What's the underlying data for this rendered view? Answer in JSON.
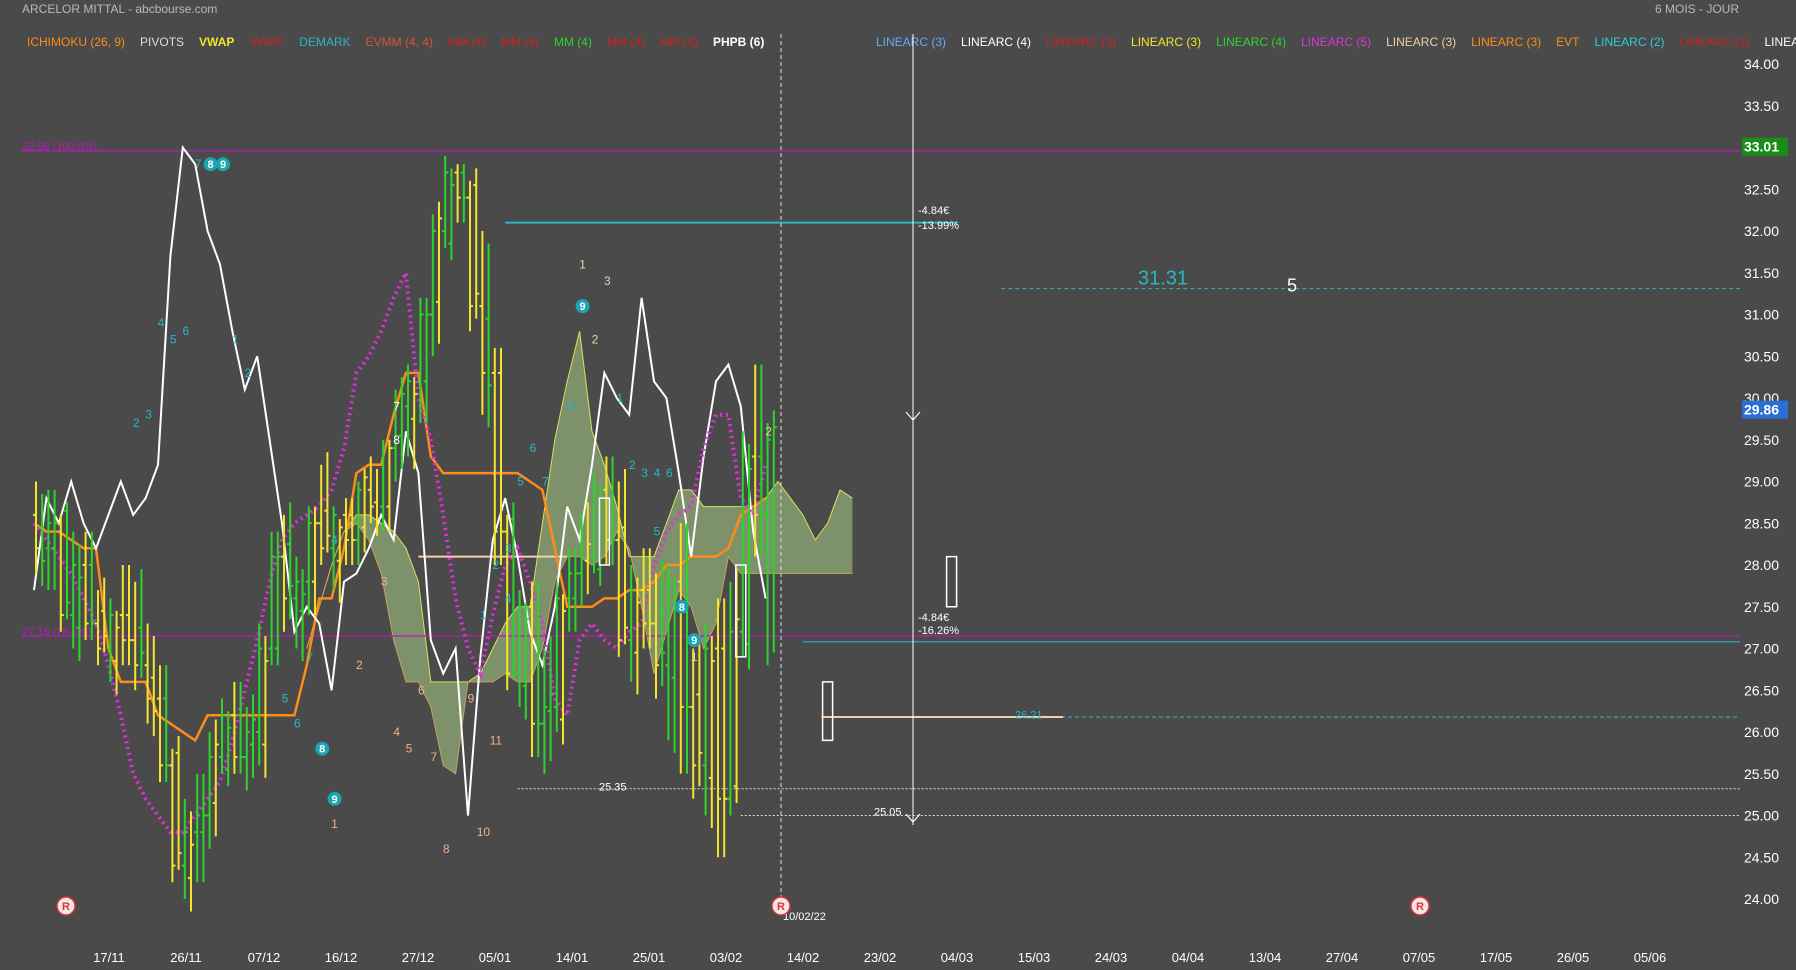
{
  "header": {
    "title": "ARCELOR MITTAL",
    "source": "abcbourse.com",
    "period": "6 MOIS - JOUR"
  },
  "legend_left": [
    {
      "label": "ICHIMOKU (26, 9)",
      "color": "#ff8c1a"
    },
    {
      "label": "PIVOTS",
      "color": "#dddddd"
    },
    {
      "label": "VWAP",
      "color": "#f2e52b"
    },
    {
      "label": "VWAP",
      "color": "#cc2222"
    },
    {
      "label": "DEMARK",
      "color": "#27b8c4"
    },
    {
      "label": "EVMM (4, 4)",
      "color": "#d9533b"
    },
    {
      "label": "MM (4)",
      "color": "#cc2222"
    },
    {
      "label": "MM (4)",
      "color": "#cc2222"
    },
    {
      "label": "MM (4)",
      "color": "#2bd62b"
    },
    {
      "label": "MM (4)",
      "color": "#cc2222"
    },
    {
      "label": "MM (4)",
      "color": "#cc2222"
    },
    {
      "label": "PHPB (6)",
      "color": "#ffffff"
    }
  ],
  "legend_right": [
    {
      "label": "LINEARC (3)",
      "color": "#66aaff"
    },
    {
      "label": "LINEARC (4)",
      "color": "#ffffff"
    },
    {
      "label": "LINEARC (3)",
      "color": "#cc2222"
    },
    {
      "label": "LINEARC (3)",
      "color": "#f2e52b"
    },
    {
      "label": "LINEARC (4)",
      "color": "#2bd62b"
    },
    {
      "label": "LINEARC (5)",
      "color": "#d63ad6"
    },
    {
      "label": "LINEARC (3)",
      "color": "#f0d0a8"
    },
    {
      "label": "LINEARC (3)",
      "color": "#ff8c1a"
    },
    {
      "label": "EVT",
      "color": "#ff8c1a"
    },
    {
      "label": "LINEARC (2)",
      "color": "#27d0d6"
    },
    {
      "label": "LINEARC (2)",
      "color": "#cc2222"
    },
    {
      "label": "LINEARC",
      "color": "#ffffff"
    }
  ],
  "chart_data": {
    "type": "candlestick",
    "y_ticks": [
      24.0,
      24.5,
      25.0,
      25.5,
      26.0,
      26.5,
      27.0,
      27.5,
      28.0,
      28.5,
      29.0,
      29.5,
      30.0,
      30.5,
      31.0,
      31.5,
      32.0,
      32.5,
      33.0,
      33.5,
      34.0
    ],
    "ylim": [
      23.6,
      34.3
    ],
    "x_ticks": [
      "17/11",
      "26/11",
      "07/12",
      "16/12",
      "27/12",
      "05/01",
      "14/01",
      "25/01",
      "03/02",
      "14/02",
      "23/02",
      "04/03",
      "15/03",
      "24/03",
      "04/04",
      "13/04",
      "27/04",
      "07/05",
      "17/05",
      "26/05",
      "05/06"
    ],
    "last_price": 29.86,
    "level_price": 33.01,
    "colors": {
      "up": "#2bd62b",
      "down": "#f2e52b",
      "ichi_line": "#ff8c1a",
      "cloud": "#8faa77",
      "cloud_edge": "#d7e25e",
      "pivot_line": "#ffffff",
      "dots": "#e02ee0",
      "teal": "#27b8c4",
      "fibo": "#b81ab8",
      "axis_text": "#ffffff",
      "green_badge": "#1a8c1a",
      "blue_badge": "#2b6fd6"
    },
    "fibo_levels": [
      {
        "label": "32.96  (100.0%)",
        "value": 32.96
      },
      {
        "label": "27.15  (78.6%)",
        "value": 27.15
      }
    ],
    "annotations": {
      "target": "31.31",
      "wave": "5",
      "low_a": "25.35",
      "low_b": "25.05",
      "level_c": "26.21",
      "date": "10/02/22",
      "meas_top_abs": "-4.84€",
      "meas_top_pct": "-13.99%",
      "meas_bot_abs": "-4.84€",
      "meas_bot_pct": "-16.26%",
      "r_marker": "R"
    },
    "demark_counts": [
      {
        "t": "7",
        "i": "13",
        "v": 32.8,
        "c": "#27b8c4"
      },
      {
        "t": "8",
        "i": "14",
        "v": 32.8,
        "c": "#ffffff",
        "badge": true
      },
      {
        "t": "9",
        "i": "15",
        "v": 32.8,
        "c": "#ffffff",
        "badge": true
      },
      {
        "t": "1",
        "i": "16",
        "v": 30.7,
        "c": "#27b8c4"
      },
      {
        "t": "2",
        "i": "17",
        "v": 30.3,
        "c": "#27b8c4"
      },
      {
        "t": "4",
        "i": "10",
        "v": 30.9,
        "c": "#27b8c4"
      },
      {
        "t": "5",
        "i": "11",
        "v": 30.7,
        "c": "#27b8c4"
      },
      {
        "t": "6",
        "i": "12",
        "v": 30.8,
        "c": "#27b8c4"
      },
      {
        "t": "2",
        "i": "8",
        "v": 29.7,
        "c": "#27b8c4"
      },
      {
        "t": "3",
        "i": "9",
        "v": 29.8,
        "c": "#27b8c4"
      },
      {
        "t": "4",
        "i": "24",
        "v": 28.3,
        "c": "#27b8c4"
      },
      {
        "t": "5",
        "i": "20",
        "v": 26.4,
        "c": "#27b8c4"
      },
      {
        "t": "6",
        "i": "21",
        "v": 26.1,
        "c": "#27b8c4"
      },
      {
        "t": "7",
        "i": "22",
        "v": 26.9,
        "c": "#27b8c4"
      },
      {
        "t": "8",
        "i": "23",
        "v": 25.8,
        "c": "#ffffff",
        "badge": true
      },
      {
        "t": "9",
        "i": "24",
        "v": 25.2,
        "c": "#ffffff",
        "badge": true
      },
      {
        "t": "1",
        "i": "24",
        "v": 24.9,
        "c": "#f0b090"
      },
      {
        "t": "2",
        "i": "26",
        "v": 26.8,
        "c": "#f0b090"
      },
      {
        "t": "3",
        "i": "28",
        "v": 27.8,
        "c": "#f0b090"
      },
      {
        "t": "4",
        "i": "29",
        "v": 26.0,
        "c": "#f0b090"
      },
      {
        "t": "5",
        "i": "30",
        "v": 25.8,
        "c": "#f0b090"
      },
      {
        "t": "6",
        "i": "31",
        "v": 26.5,
        "c": "#f0b090"
      },
      {
        "t": "7",
        "i": "32",
        "v": 25.7,
        "c": "#f0b090"
      },
      {
        "t": "8",
        "i": "33",
        "v": 24.6,
        "c": "#f0b090"
      },
      {
        "t": "9",
        "i": "35",
        "v": 26.4,
        "c": "#f0b090"
      },
      {
        "t": "10",
        "i": "36",
        "v": 24.8,
        "c": "#f0b090"
      },
      {
        "t": "11",
        "i": "37",
        "v": 25.9,
        "c": "#f0b090"
      },
      {
        "t": "7",
        "i": "29",
        "v": 29.9,
        "c": "#ffffff"
      },
      {
        "t": "8",
        "i": "29",
        "v": 29.5,
        "c": "#ffffff"
      },
      {
        "t": "1",
        "i": "36",
        "v": 27.4,
        "c": "#27b8c4"
      },
      {
        "t": "2",
        "i": "37",
        "v": 28.0,
        "c": "#27b8c4"
      },
      {
        "t": "3",
        "i": "38",
        "v": 28.2,
        "c": "#27b8c4"
      },
      {
        "t": "4",
        "i": "38",
        "v": 27.6,
        "c": "#27b8c4"
      },
      {
        "t": "5",
        "i": "39",
        "v": 29.0,
        "c": "#27b8c4"
      },
      {
        "t": "6",
        "i": "40",
        "v": 29.4,
        "c": "#27b8c4"
      },
      {
        "t": "7",
        "i": "41",
        "v": 29.0,
        "c": "#27b8c4"
      },
      {
        "t": "8",
        "i": "43",
        "v": 29.9,
        "c": "#27b8c4"
      },
      {
        "t": "9",
        "i": "44",
        "v": 31.1,
        "c": "#ffffff",
        "badge": true
      },
      {
        "t": "1",
        "i": "44",
        "v": 31.6,
        "c": "#f0d0a8"
      },
      {
        "t": "2",
        "i": "45",
        "v": 30.7,
        "c": "#f0d0a8"
      },
      {
        "t": "3",
        "i": "46",
        "v": 31.4,
        "c": "#f0d0a8"
      },
      {
        "t": "1",
        "i": "47",
        "v": 30.0,
        "c": "#27b8c4"
      },
      {
        "t": "2",
        "i": "48",
        "v": 29.2,
        "c": "#27b8c4"
      },
      {
        "t": "3",
        "i": "49",
        "v": 29.1,
        "c": "#27b8c4"
      },
      {
        "t": "4",
        "i": "50",
        "v": 29.1,
        "c": "#27b8c4"
      },
      {
        "t": "5",
        "i": "50",
        "v": 28.4,
        "c": "#27b8c4"
      },
      {
        "t": "6",
        "i": "51",
        "v": 29.1,
        "c": "#27b8c4"
      },
      {
        "t": "8",
        "i": "52",
        "v": 27.5,
        "c": "#ffffff",
        "badge": true
      },
      {
        "t": "9",
        "i": "53",
        "v": 27.1,
        "c": "#ffffff",
        "badge": true
      },
      {
        "t": "1",
        "i": "53",
        "v": 26.9,
        "c": "#f0d0a8"
      },
      {
        "t": "2",
        "i": "59",
        "v": 29.6,
        "c": "#f0d0a8"
      }
    ],
    "ohlc": [
      [
        28.6,
        29.0,
        27.9,
        28.2
      ],
      [
        28.2,
        28.9,
        27.7,
        28.5
      ],
      [
        28.5,
        28.6,
        27.2,
        27.4
      ],
      [
        27.4,
        28.4,
        27.0,
        28.0
      ],
      [
        28.0,
        28.4,
        27.1,
        27.3
      ],
      [
        27.3,
        27.7,
        26.8,
        27.0
      ],
      [
        27.0,
        27.6,
        26.6,
        27.4
      ],
      [
        27.4,
        28.0,
        26.8,
        27.1
      ],
      [
        27.1,
        27.8,
        26.5,
        26.8
      ],
      [
        26.8,
        27.3,
        26.1,
        26.4
      ],
      [
        26.4,
        26.8,
        25.4,
        25.6
      ],
      [
        25.6,
        25.8,
        24.2,
        24.4
      ],
      [
        24.4,
        25.2,
        24.0,
        24.8
      ],
      [
        24.8,
        25.5,
        24.2,
        25.0
      ],
      [
        25.0,
        26.0,
        24.6,
        25.7
      ],
      [
        25.7,
        26.4,
        25.5,
        26.2
      ],
      [
        26.2,
        26.6,
        25.5,
        25.7
      ],
      [
        25.7,
        26.3,
        25.3,
        26.0
      ],
      [
        26.0,
        27.3,
        25.6,
        27.0
      ],
      [
        27.0,
        28.4,
        26.8,
        28.1
      ],
      [
        28.1,
        28.6,
        27.2,
        27.6
      ],
      [
        27.6,
        28.1,
        27.0,
        27.8
      ],
      [
        27.8,
        28.7,
        27.4,
        28.5
      ],
      [
        28.5,
        29.2,
        28.0,
        28.2
      ],
      [
        28.2,
        28.7,
        27.7,
        28.6
      ],
      [
        28.6,
        28.8,
        28.0,
        28.3
      ],
      [
        28.3,
        29.0,
        28.0,
        28.9
      ],
      [
        28.9,
        29.3,
        28.5,
        28.7
      ],
      [
        28.7,
        29.5,
        28.4,
        29.4
      ],
      [
        29.4,
        30.1,
        29.0,
        29.9
      ],
      [
        29.9,
        30.4,
        29.3,
        30.2
      ],
      [
        30.2,
        31.2,
        29.7,
        31.0
      ],
      [
        31.0,
        32.2,
        30.5,
        32.0
      ],
      [
        32.0,
        32.9,
        31.8,
        32.7
      ],
      [
        32.7,
        32.8,
        32.1,
        32.4
      ],
      [
        32.4,
        32.6,
        30.8,
        31.1
      ],
      [
        31.1,
        32.0,
        29.8,
        30.3
      ],
      [
        30.3,
        30.6,
        28.0,
        28.4
      ],
      [
        28.4,
        28.6,
        26.5,
        26.7
      ],
      [
        26.7,
        27.7,
        26.3,
        27.5
      ],
      [
        27.5,
        27.8,
        25.7,
        26.1
      ],
      [
        26.1,
        27.0,
        25.5,
        26.3
      ],
      [
        26.3,
        27.8,
        26.0,
        27.6
      ],
      [
        27.6,
        28.2,
        27.2,
        27.9
      ],
      [
        27.9,
        28.6,
        27.5,
        28.1
      ],
      [
        28.1,
        29.1,
        27.9,
        28.9
      ],
      [
        28.9,
        29.3,
        28.0,
        28.3
      ],
      [
        28.3,
        29.0,
        26.9,
        27.1
      ],
      [
        27.1,
        28.0,
        26.6,
        27.7
      ],
      [
        27.7,
        28.2,
        27.0,
        27.3
      ],
      [
        27.3,
        27.9,
        26.4,
        26.8
      ],
      [
        26.8,
        28.0,
        25.9,
        27.8
      ],
      [
        27.8,
        28.5,
        25.5,
        26.3
      ],
      [
        26.3,
        27.0,
        25.2,
        25.6
      ],
      [
        25.6,
        27.3,
        25.0,
        27.0
      ],
      [
        27.0,
        27.6,
        24.5,
        25.2
      ],
      [
        25.2,
        27.8,
        25.0,
        27.2
      ],
      [
        27.2,
        29.6,
        26.9,
        29.3
      ],
      [
        29.3,
        30.4,
        28.1,
        28.6
      ],
      [
        28.6,
        29.7,
        26.8,
        29.5
      ]
    ],
    "pivot_line": [
      27.7,
      28.8,
      28.5,
      29.0,
      28.5,
      28.2,
      28.6,
      29.0,
      28.6,
      28.8,
      29.2,
      31.7,
      33.0,
      32.8,
      32.0,
      31.6,
      30.8,
      30.1,
      30.5,
      29.5,
      28.5,
      27.2,
      27.5,
      27.3,
      26.5,
      27.8,
      27.9,
      28.2,
      28.6,
      28.3,
      29.6,
      29.1,
      27.1,
      26.7,
      27.0,
      25.0,
      26.9,
      28.3,
      28.8,
      28.1,
      27.2,
      26.8,
      27.5,
      28.7,
      28.3,
      29.2,
      30.3,
      30.0,
      29.8,
      31.2,
      30.2,
      30.0,
      29.1,
      28.1,
      29.3,
      30.2,
      30.4,
      29.9,
      28.4,
      27.6
    ],
    "ichi_line": [
      28.5,
      28.4,
      28.4,
      28.3,
      28.2,
      28.2,
      27.0,
      26.6,
      26.6,
      26.6,
      26.2,
      26.1,
      26.0,
      25.9,
      26.2,
      26.2,
      26.2,
      26.2,
      26.2,
      26.2,
      26.2,
      26.2,
      26.8,
      27.6,
      27.6,
      28.2,
      29.1,
      29.2,
      29.2,
      29.8,
      30.3,
      30.3,
      29.3,
      29.1,
      29.1,
      29.1,
      29.1,
      29.1,
      29.1,
      29.1,
      29.0,
      28.9,
      28.2,
      27.5,
      27.5,
      27.5,
      27.6,
      27.6,
      27.7,
      27.7,
      27.8,
      28.0,
      28.0,
      28.1,
      28.1,
      28.1,
      28.2,
      28.6,
      28.7,
      28.8
    ],
    "dots_line": [
      28.5,
      28.3,
      28.1,
      27.9,
      27.6,
      27.3,
      26.8,
      26.2,
      25.5,
      25.2,
      25.0,
      24.8,
      24.8,
      25.0,
      25.2,
      25.4,
      25.9,
      26.5,
      27.1,
      27.8,
      28.3,
      28.5,
      28.6,
      28.7,
      28.9,
      29.4,
      30.3,
      30.5,
      30.8,
      31.2,
      31.5,
      30.0,
      29.5,
      28.6,
      27.6,
      27.0,
      26.7,
      27.4,
      28.0,
      28.2,
      27.8,
      27.3,
      26.4,
      26.2,
      27.1,
      27.3,
      27.1,
      27.0,
      27.2,
      27.3,
      28.0,
      28.4,
      28.6,
      28.7,
      29.4,
      29.8,
      29.8,
      28.8,
      28.6,
      29.2
    ],
    "cloud_top": [
      27.0,
      27.5,
      28.0,
      28.4,
      28.6,
      28.6,
      28.5,
      28.4,
      28.2,
      27.8,
      26.6,
      26.6,
      26.6,
      26.6,
      26.7,
      27.0,
      27.3,
      27.5,
      27.5,
      28.5,
      29.5,
      30.2,
      30.8,
      29.6,
      29.2,
      28.7,
      28.1,
      28.1,
      28.1,
      28.5,
      28.9,
      28.9,
      28.7,
      28.7,
      28.7,
      28.7,
      28.7,
      28.8,
      29.0,
      28.8,
      28.6,
      28.3,
      28.5,
      28.9,
      28.8
    ],
    "cloud_bot": [
      27.0,
      27.5,
      28.0,
      28.4,
      28.5,
      28.3,
      27.9,
      27.1,
      26.6,
      26.6,
      26.3,
      25.6,
      25.5,
      26.6,
      26.6,
      26.6,
      26.7,
      26.6,
      26.6,
      27.0,
      27.8,
      28.1,
      28.1,
      28.0,
      28.1,
      28.4,
      28.2,
      27.5,
      26.7,
      27.2,
      27.7,
      27.5,
      27.0,
      27.3,
      28.1,
      27.9,
      27.9,
      27.9,
      27.9,
      27.9,
      27.9,
      27.9,
      27.9,
      27.9,
      27.9
    ]
  }
}
